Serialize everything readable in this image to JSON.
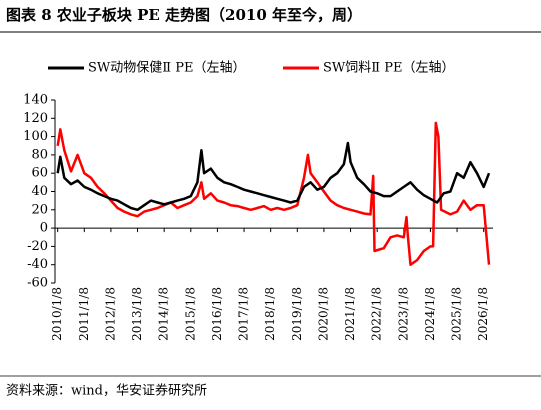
{
  "chart_data": {
    "type": "line",
    "title": "图表 8 农业子板块 PE 走势图（2010 年至今，周）",
    "source": "资料来源：wind，华安证券研究所",
    "xlim": [
      2009.9,
      2026.35
    ],
    "xticks": [
      {
        "value": 2010,
        "label": "2010/1/8"
      },
      {
        "value": 2011,
        "label": "2011/1/8"
      },
      {
        "value": 2012,
        "label": "2012/1/8"
      },
      {
        "value": 2013,
        "label": "2013/1/8"
      },
      {
        "value": 2014,
        "label": "2014/1/8"
      },
      {
        "value": 2015,
        "label": "2015/1/8"
      },
      {
        "value": 2016,
        "label": "2016/1/8"
      },
      {
        "value": 2017,
        "label": "2017/1/8"
      },
      {
        "value": 2018,
        "label": "2018/1/8"
      },
      {
        "value": 2019,
        "label": "2019/1/8"
      },
      {
        "value": 2020,
        "label": "2020/1/8"
      },
      {
        "value": 2021,
        "label": "2021/1/8"
      },
      {
        "value": 2022,
        "label": "2022/1/8"
      },
      {
        "value": 2023,
        "label": "2023/1/8"
      },
      {
        "value": 2024,
        "label": "2024/1/8"
      },
      {
        "value": 2025,
        "label": "2025/1/8"
      },
      {
        "value": 2026,
        "label": "2026/1/8"
      }
    ],
    "ylim": [
      -60,
      140
    ],
    "yticks": [
      -60,
      -40,
      -20,
      0,
      20,
      40,
      60,
      80,
      100,
      120,
      140
    ],
    "grid": false,
    "legend": "top",
    "series": [
      {
        "name": "SW动物保健Ⅱ PE（左轴）",
        "color": "#000000",
        "x": [
          2010.0,
          2010.1,
          2010.25,
          2010.5,
          2010.75,
          2011.0,
          2011.25,
          2011.5,
          2011.75,
          2012.0,
          2012.25,
          2012.5,
          2012.75,
          2013.0,
          2013.25,
          2013.5,
          2013.75,
          2014.0,
          2014.25,
          2014.5,
          2014.75,
          2015.0,
          2015.25,
          2015.4,
          2015.5,
          2015.75,
          2016.0,
          2016.25,
          2016.5,
          2016.75,
          2017.0,
          2017.25,
          2017.5,
          2017.75,
          2018.0,
          2018.25,
          2018.5,
          2018.75,
          2019.0,
          2019.25,
          2019.5,
          2019.75,
          2020.0,
          2020.25,
          2020.5,
          2020.75,
          2020.9,
          2021.0,
          2021.25,
          2021.5,
          2021.75,
          2022.0,
          2022.25,
          2022.5,
          2022.75,
          2023.0,
          2023.25,
          2023.5,
          2023.75,
          2024.0,
          2024.25,
          2024.5,
          2024.75,
          2025.0,
          2025.25,
          2025.5,
          2025.75,
          2026.0,
          2026.2
        ],
        "values": [
          60,
          78,
          55,
          48,
          52,
          45,
          42,
          38,
          35,
          32,
          30,
          26,
          22,
          20,
          25,
          30,
          28,
          26,
          28,
          30,
          32,
          35,
          50,
          85,
          60,
          65,
          55,
          50,
          48,
          45,
          42,
          40,
          38,
          36,
          34,
          32,
          30,
          28,
          30,
          45,
          50,
          42,
          45,
          55,
          60,
          70,
          93,
          72,
          55,
          48,
          40,
          38,
          35,
          35,
          40,
          45,
          50,
          42,
          36,
          32,
          28,
          38,
          40,
          60,
          55,
          72,
          60,
          45,
          60
        ]
      },
      {
        "name": "SW饲料Ⅱ PE（左轴）",
        "color": "#ff0000",
        "x": [
          2010.0,
          2010.1,
          2010.25,
          2010.5,
          2010.75,
          2011.0,
          2011.25,
          2011.5,
          2011.75,
          2012.0,
          2012.25,
          2012.5,
          2012.75,
          2013.0,
          2013.25,
          2013.5,
          2013.75,
          2014.0,
          2014.25,
          2014.5,
          2014.75,
          2015.0,
          2015.25,
          2015.4,
          2015.5,
          2015.75,
          2016.0,
          2016.25,
          2016.5,
          2016.75,
          2017.0,
          2017.25,
          2017.5,
          2017.75,
          2018.0,
          2018.25,
          2018.5,
          2018.75,
          2019.0,
          2019.25,
          2019.4,
          2019.5,
          2019.75,
          2020.0,
          2020.25,
          2020.5,
          2020.75,
          2021.0,
          2021.25,
          2021.5,
          2021.75,
          2021.85,
          2021.9,
          2022.25,
          2022.5,
          2022.75,
          2023.0,
          2023.1,
          2023.15,
          2023.25,
          2023.5,
          2023.75,
          2024.0,
          2024.1,
          2024.2,
          2024.3,
          2024.4,
          2024.75,
          2025.0,
          2025.25,
          2025.5,
          2025.75,
          2026.0,
          2026.2
        ],
        "values": [
          90,
          108,
          85,
          62,
          80,
          60,
          55,
          45,
          38,
          30,
          22,
          18,
          15,
          13,
          18,
          20,
          22,
          25,
          28,
          22,
          25,
          28,
          35,
          50,
          32,
          38,
          30,
          28,
          25,
          24,
          22,
          20,
          22,
          24,
          20,
          22,
          20,
          22,
          25,
          55,
          80,
          60,
          50,
          40,
          30,
          25,
          22,
          20,
          18,
          16,
          15,
          57,
          -25,
          -22,
          -10,
          -8,
          -10,
          12,
          -8,
          -40,
          -35,
          -25,
          -20,
          -20,
          115,
          100,
          20,
          15,
          18,
          30,
          20,
          25,
          25,
          -40
        ]
      }
    ]
  }
}
